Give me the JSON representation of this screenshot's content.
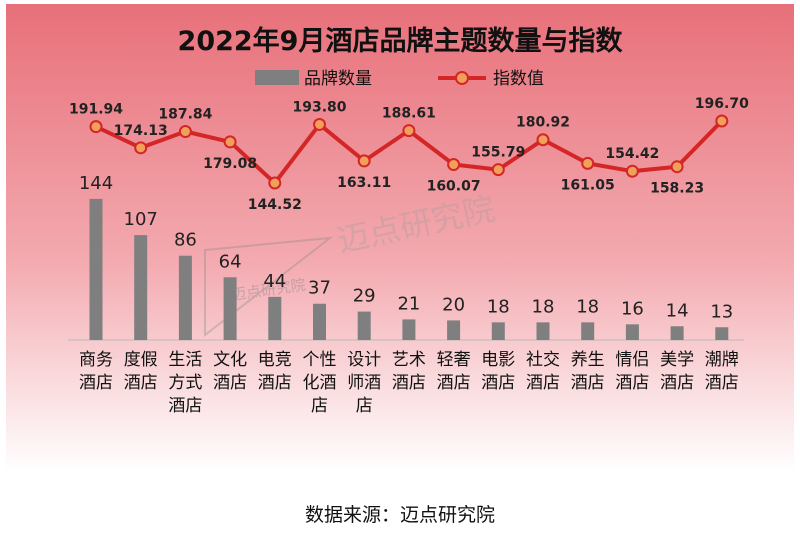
{
  "chart_data": {
    "type": "bar",
    "title": "2022年9月酒店品牌主题数量与指数",
    "categories": [
      "商务酒店",
      "度假酒店",
      "生活方式酒店",
      "文化酒店",
      "电竞酒店",
      "个性化酒店",
      "设计师酒店",
      "艺术酒店",
      "轻奢酒店",
      "电影酒店",
      "社交酒店",
      "养生酒店",
      "情侣酒店",
      "美学酒店",
      "潮牌酒店"
    ],
    "category_lines": [
      [
        "商务",
        "酒店"
      ],
      [
        "度假",
        "酒店"
      ],
      [
        "生活",
        "方式",
        "酒店"
      ],
      [
        "文化",
        "酒店"
      ],
      [
        "电竞",
        "酒店"
      ],
      [
        "个性",
        "化酒",
        "店"
      ],
      [
        "设计",
        "师酒",
        "店"
      ],
      [
        "艺术",
        "酒店"
      ],
      [
        "轻奢",
        "酒店"
      ],
      [
        "电影",
        "酒店"
      ],
      [
        "社交",
        "酒店"
      ],
      [
        "养生",
        "酒店"
      ],
      [
        "情侣",
        "酒店"
      ],
      [
        "美学",
        "酒店"
      ],
      [
        "潮牌",
        "酒店"
      ]
    ],
    "series": [
      {
        "name": "品牌数量",
        "type": "bar",
        "values": [
          144,
          107,
          86,
          64,
          44,
          37,
          29,
          21,
          20,
          18,
          18,
          18,
          16,
          14,
          13
        ]
      },
      {
        "name": "指数值",
        "type": "line",
        "values": [
          191.94,
          174.13,
          187.84,
          179.08,
          144.52,
          193.8,
          163.11,
          188.61,
          160.07,
          155.79,
          180.92,
          161.05,
          154.42,
          158.23,
          196.7
        ]
      }
    ],
    "bar_labels": [
      "144",
      "107",
      "86",
      "64",
      "44",
      "37",
      "29",
      "21",
      "20",
      "18",
      "18",
      "18",
      "16",
      "14",
      "13"
    ],
    "line_labels": [
      "191.94",
      "174.13",
      "187.84",
      "179.08",
      "144.52",
      "193.80",
      "163.11",
      "188.61",
      "160.07",
      "155.79",
      "180.92",
      "161.05",
      "154.42",
      "158.23",
      "196.70"
    ],
    "line_label_side": [
      "above",
      "above",
      "above",
      "below",
      "below",
      "above",
      "below",
      "above",
      "below",
      "above",
      "above",
      "below",
      "above",
      "below",
      "above"
    ],
    "legend_position": "top",
    "grid": false,
    "colors": {
      "bar": "#7f7f7f",
      "line": "#d42626",
      "marker_fill": "#f0a05a",
      "marker_stroke": "#d42626",
      "background_top": "#e8707a",
      "background_bottom": "#ffffff"
    }
  },
  "watermark": "迈点研究院",
  "watermark_badge": "迈点研究院",
  "source": "数据来源：迈点研究院"
}
